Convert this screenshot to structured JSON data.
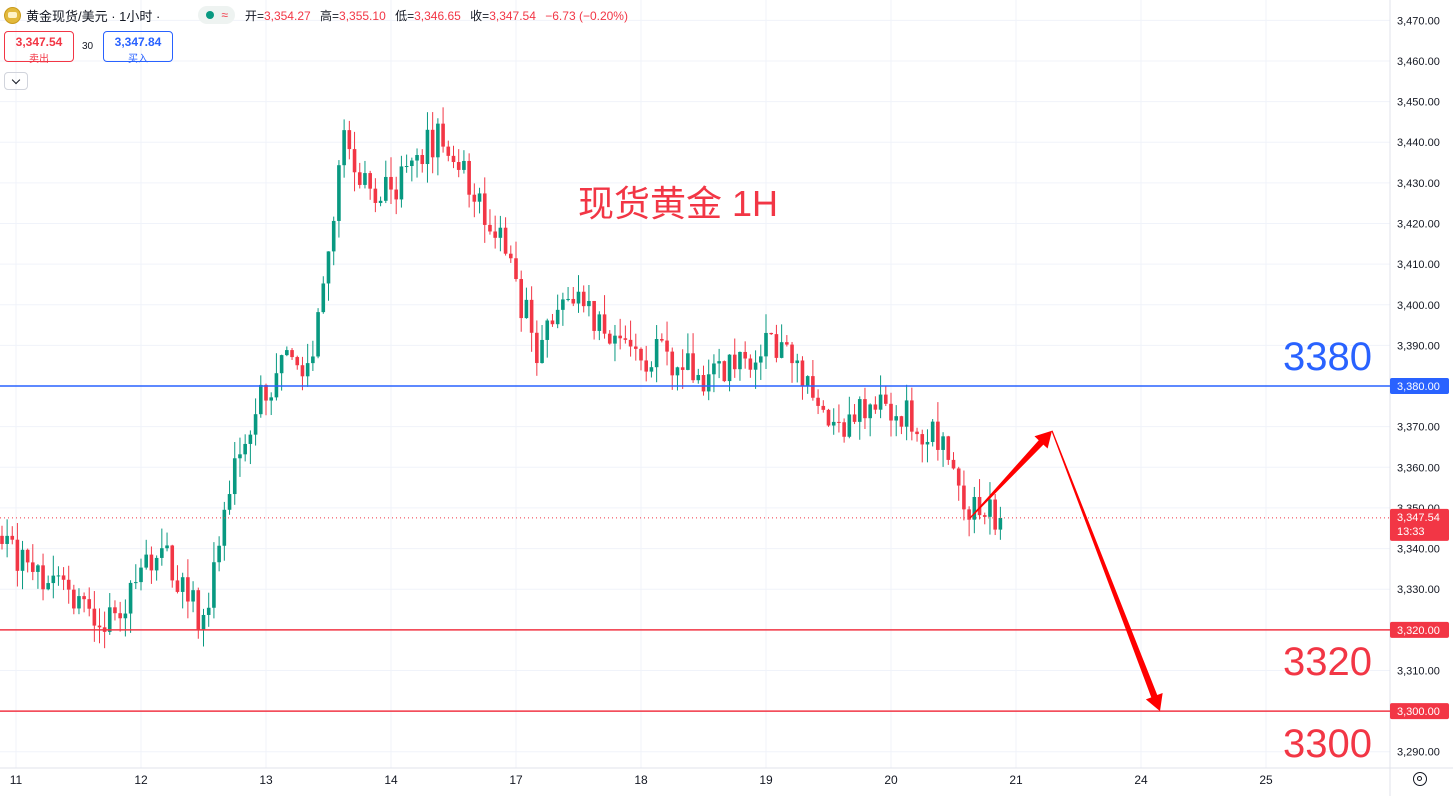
{
  "header": {
    "symbol": "黄金现货/美元 · 1小时 ·",
    "status_wave": "≈",
    "open_label": "开=",
    "open_value": "3,354.27",
    "high_label": "高=",
    "high_value": "3,355.10",
    "low_label": "低=",
    "low_value": "3,346.65",
    "close_label": "收=",
    "close_value": "3,347.54",
    "change": "−6.73 (−0.20%)"
  },
  "trade": {
    "sell_price": "3,347.54",
    "sell_label": "卖出",
    "spread": "30",
    "buy_price": "3,347.84",
    "buy_label": "买入"
  },
  "colors": {
    "up": "#089981",
    "down": "#f23645",
    "resistance": "#2962ff",
    "support": "#f23645"
  },
  "chart_data": {
    "type": "candlestick",
    "title": "现货黄金 1H",
    "x_ticks": [
      "11",
      "12",
      "13",
      "14",
      "17",
      "18",
      "19",
      "20",
      "21",
      "24",
      "25"
    ],
    "y_ticks": [
      "3,470.00",
      "3,460.00",
      "3,450.00",
      "3,440.00",
      "3,430.00",
      "3,420.00",
      "3,410.00",
      "3,400.00",
      "3,390.00",
      "3,380.00",
      "3,370.00",
      "3,360.00",
      "3,350.00",
      "3,340.00",
      "3,330.00",
      "3,320.00",
      "3,310.00",
      "3,300.00",
      "3,290.00"
    ],
    "ylim": [
      3286,
      3475
    ],
    "current_price": "3,347.54",
    "countdown": "13:33",
    "levels": [
      {
        "price": 3380,
        "axis_label": "3,380.00",
        "annotation": "3380",
        "color": "#2962ff"
      },
      {
        "price": 3320,
        "axis_label": "3,320.00",
        "annotation": "3320",
        "color": "#f23645"
      },
      {
        "price": 3300,
        "axis_label": "3,300.00",
        "annotation": "3300",
        "color": "#f23645"
      }
    ],
    "forecast_path": [
      {
        "x": "20",
        "y": 3347.5
      },
      {
        "x": "21",
        "y": 3369
      },
      {
        "x": "24",
        "y": 3300
      }
    ],
    "anchors": [
      {
        "x": "11",
        "price": 3340
      },
      {
        "x": "11",
        "price": 3322
      },
      {
        "x": "12",
        "price": 3340
      },
      {
        "x": "12",
        "price": 3322
      },
      {
        "x": "12",
        "price": 3370
      },
      {
        "x": "13",
        "price": 3384
      },
      {
        "x": "13",
        "price": 3388
      },
      {
        "x": "13",
        "price": 3440
      },
      {
        "x": "13",
        "price": 3425
      },
      {
        "x": "14",
        "price": 3432
      },
      {
        "x": "14",
        "price": 3442
      },
      {
        "x": "14",
        "price": 3430
      },
      {
        "x": "14",
        "price": 3415
      },
      {
        "x": "17",
        "price": 3390
      },
      {
        "x": "17",
        "price": 3402
      },
      {
        "x": "17",
        "price": 3388
      },
      {
        "x": "18",
        "price": 3388
      },
      {
        "x": "18",
        "price": 3382
      },
      {
        "x": "18",
        "price": 3386
      },
      {
        "x": "19",
        "price": 3392
      },
      {
        "x": "19",
        "price": 3368
      },
      {
        "x": "19",
        "price": 3376
      },
      {
        "x": "20",
        "price": 3372
      },
      {
        "x": "20",
        "price": 3368
      },
      {
        "x": "20",
        "price": 3350
      },
      {
        "x": "20",
        "price": 3347.54
      }
    ]
  }
}
